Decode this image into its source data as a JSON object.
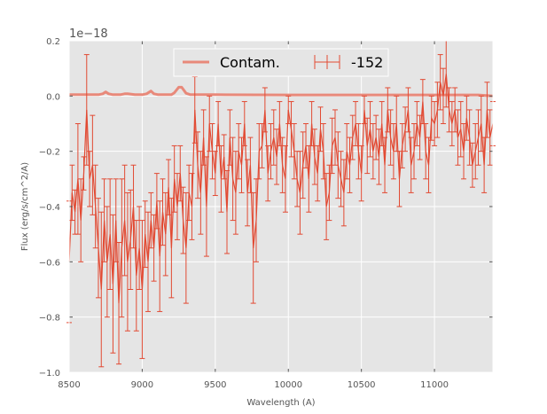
{
  "chart_data": {
    "type": "line",
    "xlabel": "Wavelength (A)",
    "ylabel": "Flux (erg/s/cm^2/A)",
    "y_offset_text": "1e−18",
    "xlim": [
      8500,
      11400
    ],
    "ylim": [
      -1.0,
      0.2
    ],
    "grid": true,
    "legend_position": "top-center",
    "x_ticks": [
      8500,
      9000,
      9500,
      10000,
      10500,
      11000
    ],
    "x_tick_labels": [
      "8500",
      "9000",
      "9500",
      "10000",
      "10500",
      "11000"
    ],
    "y_ticks": [
      -1.0,
      -0.8,
      -0.6,
      -0.4,
      -0.2,
      0.0,
      0.2
    ],
    "y_tick_labels": [
      "−1.0",
      "−0.8",
      "−0.6",
      "−0.4",
      "−0.2",
      "0.0",
      "0.2"
    ],
    "colors": {
      "data": "#e24a33",
      "contam": "#e8897a",
      "background": "#e5e5e5",
      "grid": "#ffffff"
    },
    "series": [
      {
        "name": "Contam.",
        "kind": "line",
        "x": [
          8500,
          8700,
          8730,
          8750,
          8770,
          8800,
          8850,
          8880,
          8900,
          8950,
          9000,
          9030,
          9060,
          9080,
          9110,
          9200,
          9220,
          9250,
          9270,
          9300,
          9330,
          9400,
          9500,
          10000,
          10500,
          11000,
          11300,
          11400
        ],
        "y": [
          0.005,
          0.005,
          0.008,
          0.015,
          0.008,
          0.005,
          0.005,
          0.008,
          0.008,
          0.005,
          0.005,
          0.008,
          0.018,
          0.008,
          0.005,
          0.005,
          0.012,
          0.032,
          0.032,
          0.01,
          0.005,
          0.005,
          0.005,
          0.004,
          0.004,
          0.004,
          0.004,
          0.0
        ]
      },
      {
        "name": "-152",
        "kind": "errorbar",
        "x": [
          8500,
          8520,
          8540,
          8560,
          8580,
          8600,
          8620,
          8640,
          8660,
          8680,
          8700,
          8720,
          8740,
          8760,
          8780,
          8800,
          8820,
          8840,
          8860,
          8880,
          8900,
          8920,
          8940,
          8960,
          8980,
          9000,
          9020,
          9040,
          9060,
          9080,
          9100,
          9120,
          9140,
          9160,
          9180,
          9200,
          9220,
          9240,
          9260,
          9280,
          9300,
          9320,
          9340,
          9360,
          9380,
          9400,
          9420,
          9440,
          9460,
          9480,
          9500,
          9520,
          9540,
          9560,
          9580,
          9600,
          9620,
          9640,
          9660,
          9680,
          9700,
          9720,
          9740,
          9760,
          9780,
          9800,
          9820,
          9840,
          9860,
          9880,
          9900,
          9920,
          9940,
          9960,
          9980,
          10000,
          10020,
          10040,
          10060,
          10080,
          10100,
          10120,
          10140,
          10160,
          10180,
          10200,
          10220,
          10240,
          10260,
          10280,
          10300,
          10320,
          10340,
          10360,
          10380,
          10400,
          10420,
          10440,
          10460,
          10480,
          10500,
          10520,
          10540,
          10560,
          10580,
          10600,
          10620,
          10640,
          10660,
          10680,
          10700,
          10720,
          10740,
          10760,
          10780,
          10800,
          10820,
          10840,
          10860,
          10880,
          10900,
          10920,
          10940,
          10960,
          10980,
          11000,
          11020,
          11040,
          11060,
          11080,
          11100,
          11120,
          11140,
          11160,
          11180,
          11200,
          11220,
          11240,
          11260,
          11280,
          11300,
          11320,
          11340,
          11360,
          11380,
          11400
        ],
        "y": [
          -0.6,
          -0.35,
          -0.42,
          -0.3,
          -0.45,
          -0.28,
          -0.05,
          -0.3,
          -0.25,
          -0.4,
          -0.55,
          -0.7,
          -0.45,
          -0.6,
          -0.5,
          -0.68,
          -0.45,
          -0.75,
          -0.55,
          -0.45,
          -0.6,
          -0.52,
          -0.4,
          -0.65,
          -0.55,
          -0.7,
          -0.5,
          -0.6,
          -0.45,
          -0.55,
          -0.38,
          -0.58,
          -0.42,
          -0.5,
          -0.33,
          -0.55,
          -0.3,
          -0.4,
          -0.28,
          -0.45,
          -0.55,
          -0.35,
          -0.4,
          -0.05,
          -0.25,
          -0.35,
          -0.15,
          -0.4,
          -0.1,
          -0.2,
          -0.28,
          -0.1,
          -0.3,
          -0.22,
          -0.42,
          -0.15,
          -0.3,
          -0.35,
          -0.2,
          -0.25,
          -0.1,
          -0.35,
          -0.25,
          -0.55,
          -0.45,
          -0.2,
          -0.18,
          -0.05,
          -0.28,
          -0.2,
          -0.15,
          -0.22,
          -0.1,
          -0.25,
          -0.3,
          -0.05,
          -0.12,
          -0.2,
          -0.3,
          -0.35,
          -0.25,
          -0.18,
          -0.3,
          -0.1,
          -0.22,
          -0.28,
          -0.12,
          -0.2,
          -0.4,
          -0.35,
          -0.18,
          -0.15,
          -0.25,
          -0.3,
          -0.35,
          -0.2,
          -0.25,
          -0.15,
          -0.1,
          -0.2,
          -0.28,
          -0.05,
          -0.18,
          -0.12,
          -0.2,
          -0.15,
          -0.22,
          -0.1,
          -0.25,
          -0.05,
          -0.15,
          -0.2,
          -0.1,
          -0.3,
          -0.18,
          -0.12,
          -0.05,
          -0.25,
          -0.2,
          -0.1,
          -0.15,
          -0.02,
          -0.2,
          -0.25,
          -0.08,
          -0.1,
          -0.05,
          0.05,
          0.0,
          0.08,
          -0.05,
          -0.1,
          -0.05,
          -0.15,
          -0.12,
          -0.2,
          -0.08,
          -0.15,
          -0.25,
          -0.2,
          -0.15,
          -0.1,
          -0.25,
          -0.05,
          -0.15,
          -0.1
        ],
        "err": [
          0.22,
          0.1,
          0.08,
          0.2,
          0.15,
          0.06,
          0.2,
          0.1,
          0.18,
          0.15,
          0.18,
          0.28,
          0.15,
          0.2,
          0.2,
          0.25,
          0.15,
          0.22,
          0.25,
          0.2,
          0.25,
          0.18,
          0.15,
          0.2,
          0.15,
          0.25,
          0.12,
          0.18,
          0.1,
          0.12,
          0.1,
          0.2,
          0.12,
          0.15,
          0.1,
          0.18,
          0.12,
          0.12,
          0.1,
          0.12,
          0.2,
          0.1,
          0.12,
          0.12,
          0.12,
          0.15,
          0.1,
          0.18,
          0.1,
          0.1,
          0.08,
          0.08,
          0.12,
          0.08,
          0.15,
          0.1,
          0.15,
          0.15,
          0.1,
          0.1,
          0.08,
          0.12,
          0.1,
          0.2,
          0.15,
          0.1,
          0.08,
          0.08,
          0.1,
          0.1,
          0.1,
          0.1,
          0.08,
          0.1,
          0.12,
          0.05,
          0.1,
          0.1,
          0.1,
          0.15,
          0.12,
          0.08,
          0.12,
          0.08,
          0.1,
          0.1,
          0.08,
          0.1,
          0.12,
          0.1,
          0.1,
          0.1,
          0.12,
          0.1,
          0.12,
          0.1,
          0.1,
          0.08,
          0.08,
          0.1,
          0.1,
          0.05,
          0.1,
          0.1,
          0.1,
          0.08,
          0.1,
          0.08,
          0.1,
          0.08,
          0.1,
          0.1,
          0.1,
          0.1,
          0.08,
          0.08,
          0.08,
          0.1,
          0.1,
          0.08,
          0.08,
          0.08,
          0.1,
          0.1,
          0.08,
          0.08,
          0.1,
          0.1,
          0.1,
          0.12,
          0.08,
          0.08,
          0.08,
          0.1,
          0.1,
          0.1,
          0.08,
          0.1,
          0.08,
          0.1,
          0.1,
          0.1,
          0.1,
          0.1,
          0.1,
          0.08
        ]
      }
    ]
  }
}
